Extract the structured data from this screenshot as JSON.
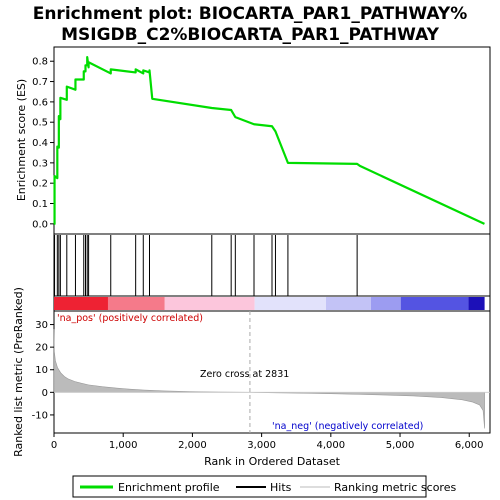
{
  "title_line1": "Enrichment plot: BIOCARTA_PAR1_PATHWAY%",
  "title_line2": "MSIGDB_C2%BIOCARTA_PAR1_PATHWAY",
  "colors": {
    "es_line": "#00dd00",
    "hit": "#000000",
    "metric_fill": "#bbbbbb",
    "pos_label": "#cc0000",
    "neg_label": "#0000cc",
    "zero_cross_line": "#aaaaaa"
  },
  "chart_data": [
    {
      "type": "line",
      "name": "enrichment-profile",
      "ylabel": "Enrichment score (ES)",
      "xlim": [
        0,
        6300
      ],
      "ylim": [
        -0.05,
        0.87
      ],
      "y_ticks": [
        0.0,
        0.1,
        0.2,
        0.3,
        0.4,
        0.5,
        0.6,
        0.7,
        0.8
      ],
      "y_tick_labels": [
        "0.0",
        "0.1",
        "0.2",
        "0.3",
        "0.4",
        "0.5",
        "0.6",
        "0.7",
        "0.8"
      ],
      "x": [
        0,
        8,
        8,
        48,
        48,
        70,
        70,
        92,
        92,
        185,
        185,
        310,
        310,
        430,
        430,
        455,
        455,
        480,
        480,
        500,
        500,
        820,
        820,
        1180,
        1180,
        1290,
        1290,
        1380,
        1380,
        1420,
        1420,
        2280,
        2280,
        2560,
        2560,
        2620,
        2620,
        2890,
        2890,
        3150,
        3150,
        3200,
        3200,
        3380,
        3380,
        4380,
        4380,
        4420,
        4420,
        6220
      ],
      "y": [
        0.0,
        0.0,
        0.235,
        0.225,
        0.38,
        0.375,
        0.53,
        0.515,
        0.62,
        0.61,
        0.675,
        0.66,
        0.71,
        0.71,
        0.75,
        0.75,
        0.78,
        0.78,
        0.82,
        0.77,
        0.795,
        0.74,
        0.76,
        0.745,
        0.76,
        0.74,
        0.755,
        0.745,
        0.755,
        0.615,
        0.615,
        0.57,
        0.57,
        0.56,
        0.56,
        0.525,
        0.525,
        0.49,
        0.49,
        0.48,
        0.48,
        0.455,
        0.455,
        0.3,
        0.3,
        0.295,
        0.295,
        0.285,
        0.285,
        0.0
      ]
    },
    {
      "type": "hits",
      "name": "hits",
      "xlim": [
        0,
        6300
      ],
      "x": [
        8,
        48,
        70,
        92,
        185,
        310,
        430,
        455,
        480,
        500,
        820,
        1180,
        1290,
        1380,
        2280,
        2560,
        2620,
        2890,
        3150,
        3200,
        3380,
        4380
      ]
    },
    {
      "type": "area",
      "name": "ranking-metric-scores",
      "xlabel": "Rank in Ordered Dataset",
      "ylabel": "Ranked list metric (PreRanked)",
      "xlim": [
        0,
        6300
      ],
      "ylim": [
        -18,
        36
      ],
      "x_ticks": [
        0,
        1000,
        2000,
        3000,
        4000,
        5000,
        6000
      ],
      "x_tick_labels": [
        "0",
        "1,000",
        "2,000",
        "3,000",
        "4,000",
        "5,000",
        "6,000"
      ],
      "y_ticks": [
        -10,
        0,
        10,
        20,
        30
      ],
      "y_tick_labels": [
        "-10",
        "0",
        "10",
        "20",
        "30"
      ],
      "x": [
        0,
        5,
        20,
        50,
        100,
        150,
        200,
        300,
        400,
        500,
        700,
        900,
        1100,
        1300,
        1600,
        2000,
        2400,
        2831,
        3200,
        3600,
        4000,
        4400,
        4800,
        5200,
        5600,
        5900,
        6050,
        6150,
        6200,
        6222
      ],
      "y": [
        28,
        18,
        14,
        11,
        8.5,
        7,
        6,
        4.8,
        4,
        3.3,
        2.5,
        1.9,
        1.4,
        1.0,
        0.6,
        0.3,
        0.1,
        0,
        -0.2,
        -0.4,
        -0.6,
        -0.9,
        -1.2,
        -1.6,
        -2.3,
        -3.3,
        -4.3,
        -5.6,
        -8,
        -16
      ]
    }
  ],
  "heatmap_bands": [
    {
      "x0": 0,
      "x1": 780,
      "color": "#ee2233"
    },
    {
      "x0": 780,
      "x1": 1600,
      "color": "#f57a8a"
    },
    {
      "x0": 1600,
      "x1": 2900,
      "color": "#fcc6dc"
    },
    {
      "x0": 2900,
      "x1": 3930,
      "color": "#e2e2fb"
    },
    {
      "x0": 3930,
      "x1": 4580,
      "color": "#c3c3f6"
    },
    {
      "x0": 4580,
      "x1": 5010,
      "color": "#9c9cf1"
    },
    {
      "x0": 5010,
      "x1": 5990,
      "color": "#5454e2"
    },
    {
      "x0": 5990,
      "x1": 6222,
      "color": "#1c10b8"
    }
  ],
  "annotations": {
    "pos_label": "'na_pos' (positively correlated)",
    "neg_label": "'na_neg' (negatively correlated)",
    "zero_cross": "Zero cross at 2831",
    "zero_cross_x": 2831
  },
  "legend": {
    "items": [
      {
        "label": "Enrichment profile",
        "icon": "green-line-icon"
      },
      {
        "label": "Hits",
        "icon": "black-line-icon"
      },
      {
        "label": "Ranking metric scores",
        "icon": "gray-line-icon"
      }
    ]
  }
}
